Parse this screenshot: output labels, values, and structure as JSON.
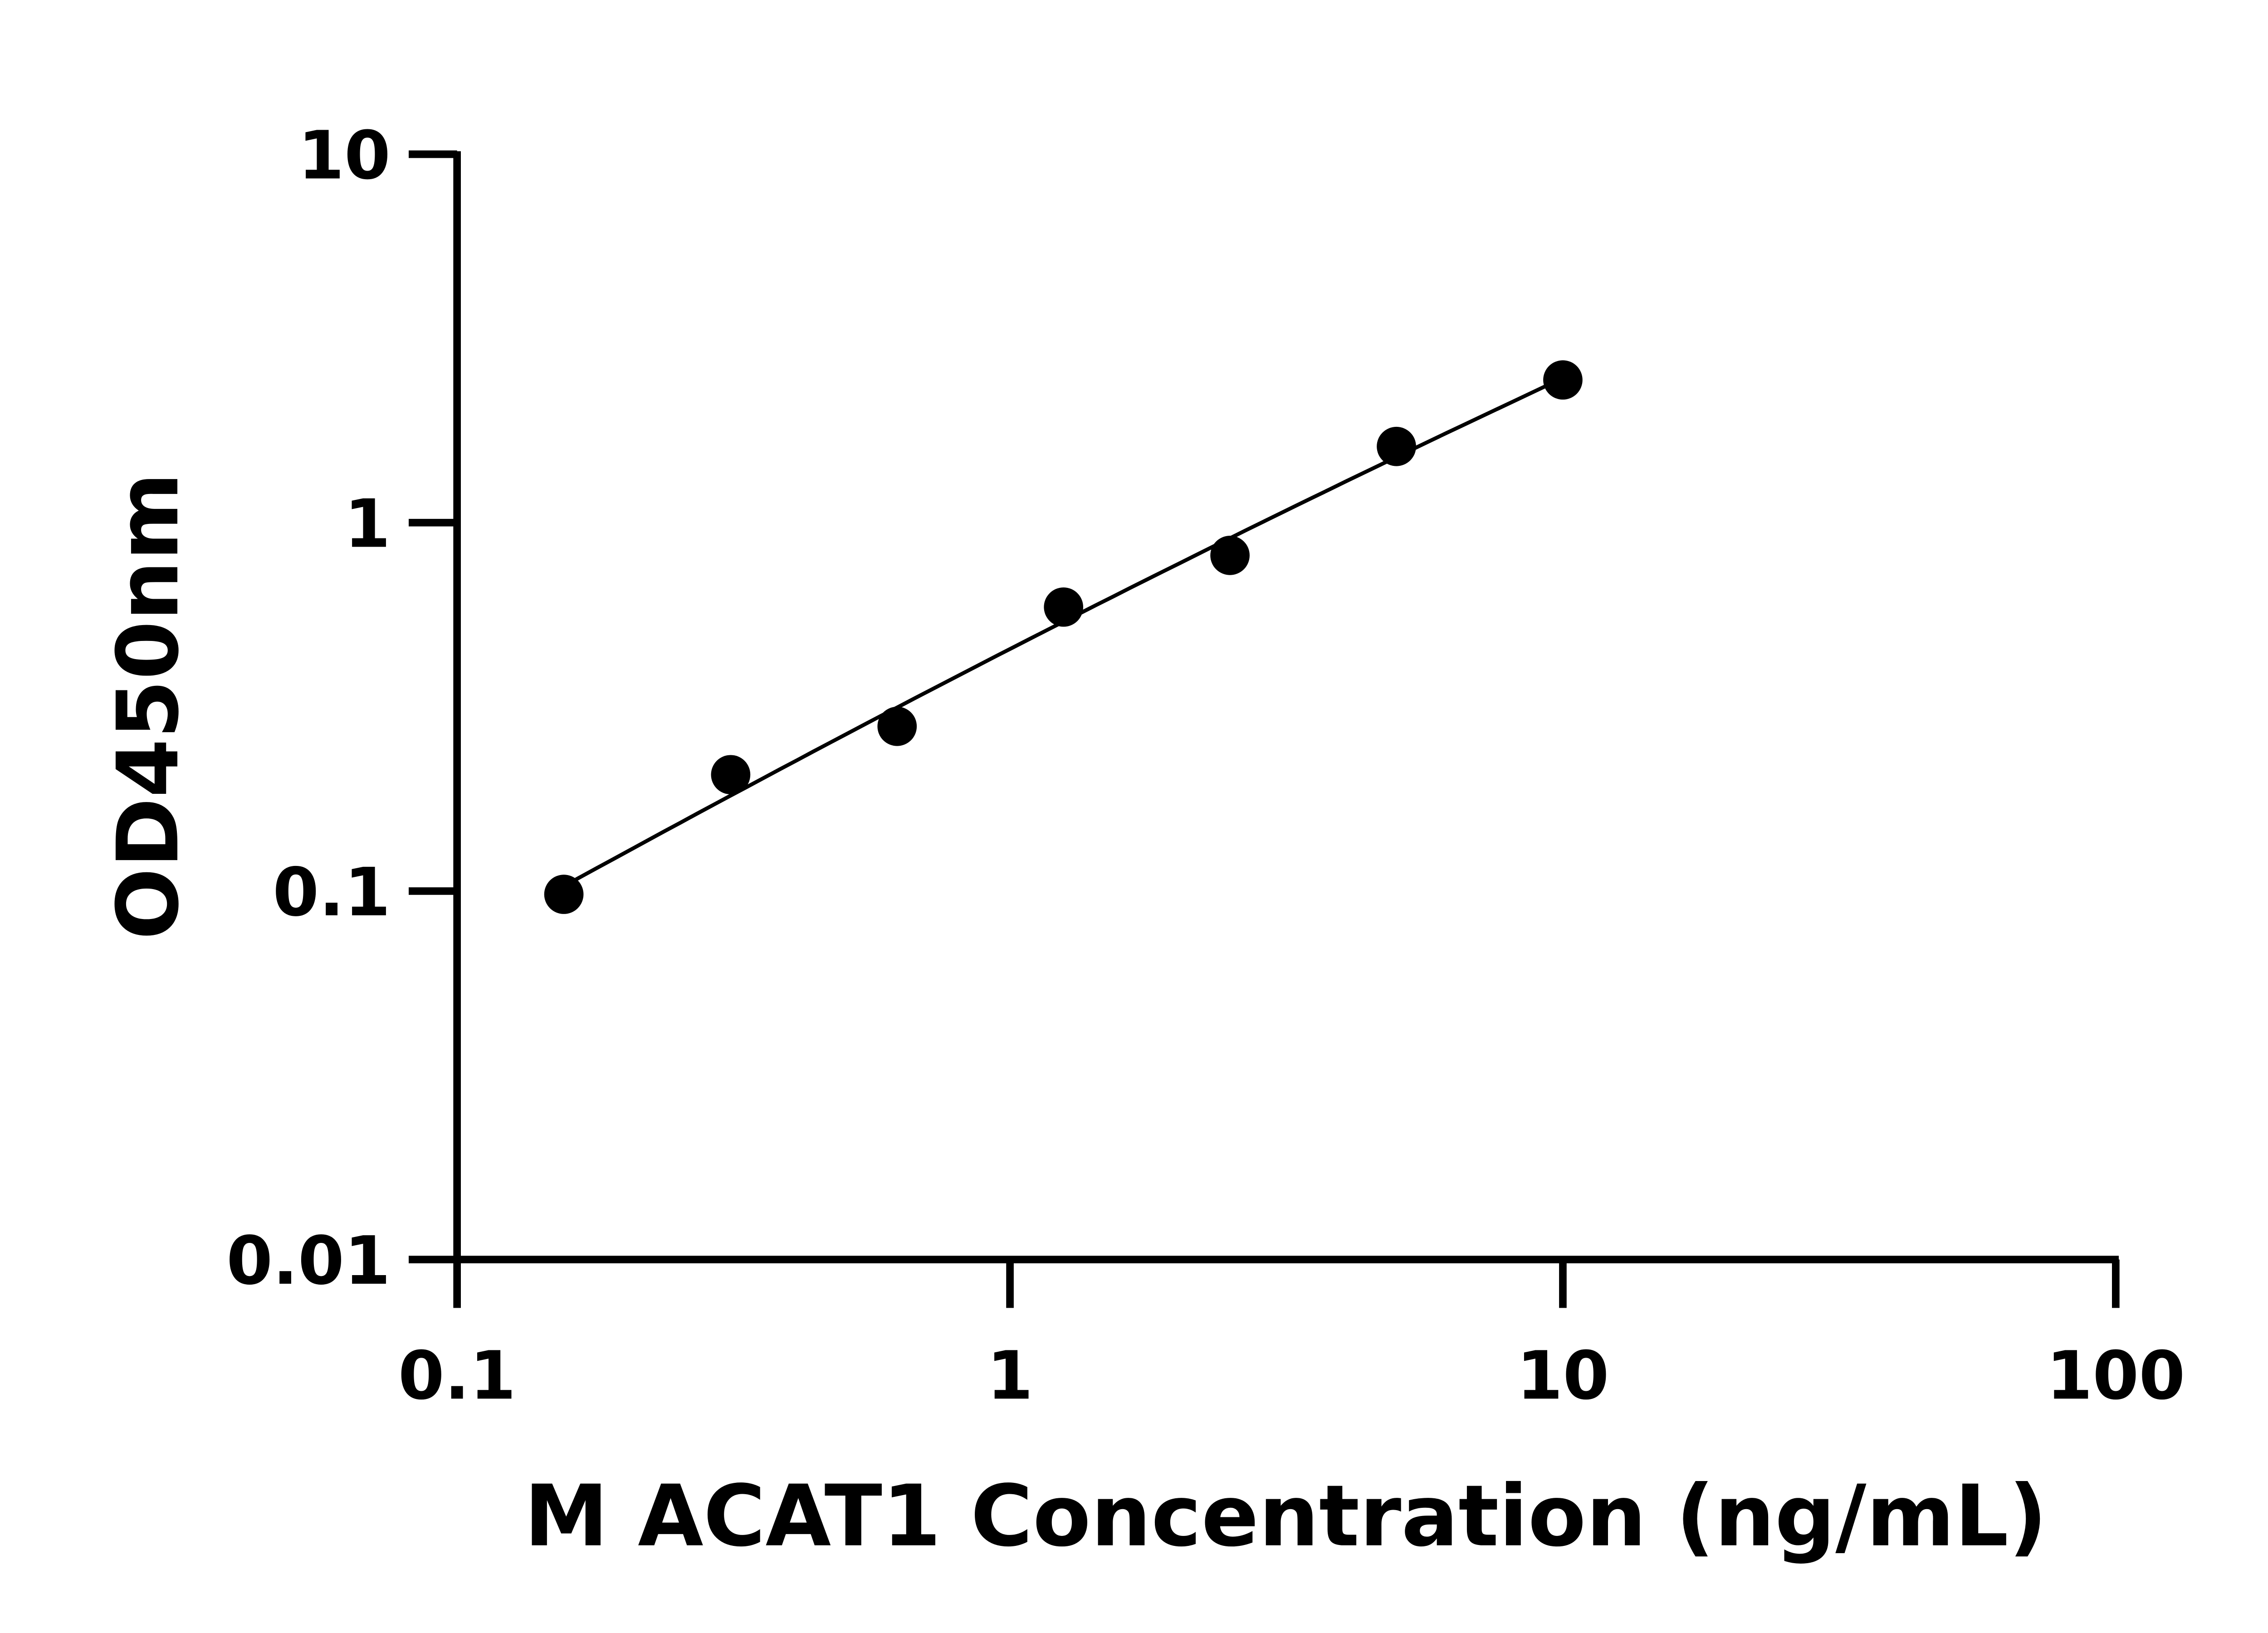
{
  "chart_data": {
    "type": "scatter",
    "title": "",
    "xlabel": "M ACAT1 Concentration (ng/mL)",
    "ylabel": "OD450nm",
    "x_scale": "log",
    "y_scale": "log",
    "xlim": [
      0.1,
      100
    ],
    "ylim": [
      0.01,
      10
    ],
    "x_ticks": [
      "0.1",
      "1",
      "10",
      "100"
    ],
    "y_ticks": [
      "0.01",
      "0.1",
      "1",
      "10"
    ],
    "grid": false,
    "fit_line": true,
    "marker_color": "#000000",
    "series": [
      {
        "x": [
          0.156,
          0.3125,
          0.625,
          1.25,
          2.5,
          5,
          10
        ],
        "y": [
          0.098,
          0.207,
          0.28,
          0.59,
          0.815,
          1.61,
          2.44
        ]
      }
    ]
  }
}
